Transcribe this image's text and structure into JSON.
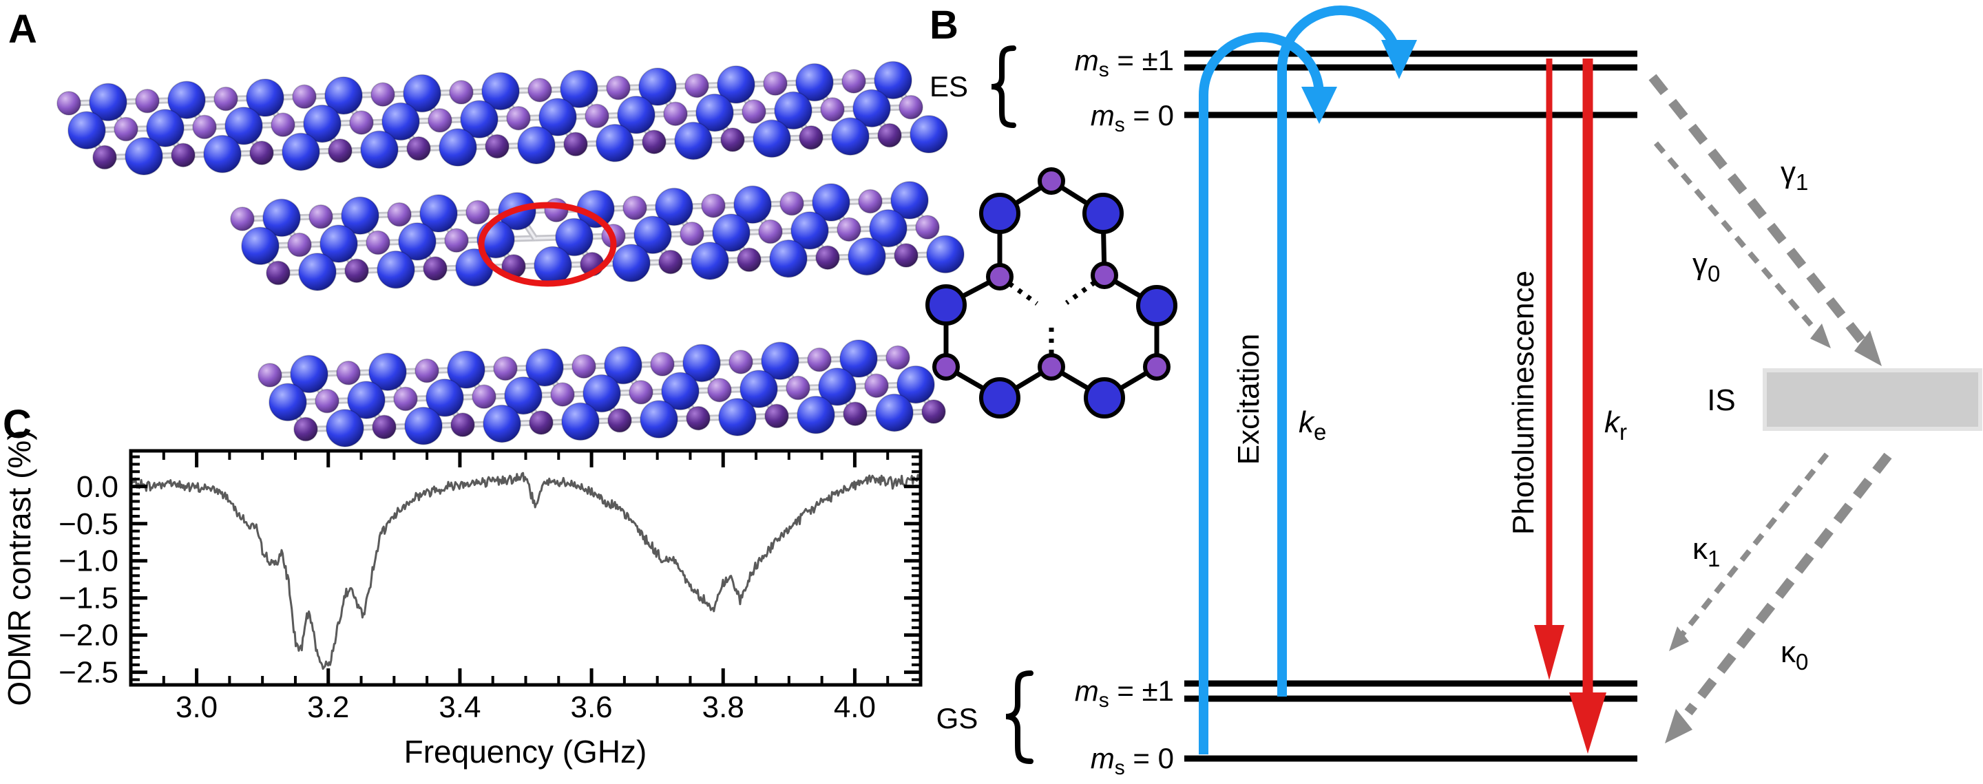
{
  "figure": {
    "panel_a_label": "A",
    "panel_b_label": "B",
    "panel_c_label": "C"
  },
  "panelA": {
    "description": "layered hexagonal crystal lattice with highlighted vacancy defect",
    "colors": {
      "atom_blue": "#2f3fe8",
      "atom_purple_back": "#8e5cc9",
      "atom_purple_front": "#5c2d91",
      "bond": "#c4c4ca",
      "highlight_ellipse": "#e81616"
    }
  },
  "panelB": {
    "es_label": "ES",
    "gs_label": "GS",
    "is_label": "IS",
    "ms_plus_minus": {
      "base": "m",
      "sub": "s",
      "rest": " = ±1"
    },
    "ms_zero": {
      "base": "m",
      "sub": "s",
      "rest": " = 0"
    },
    "excitation_label": "Excitation",
    "photoluminescence_label": "Photoluminescence",
    "k_e": {
      "base": "k",
      "sub": "e"
    },
    "k_r": {
      "base": "k",
      "sub": "r"
    },
    "gamma_1": {
      "base": "γ",
      "sub": "1"
    },
    "gamma_0": {
      "base": "γ",
      "sub": "0"
    },
    "kappa_1": {
      "base": "κ",
      "sub": "1"
    },
    "kappa_0": {
      "base": "κ",
      "sub": "0"
    },
    "colors": {
      "excitation": "#1c9ef2",
      "photoluminescence": "#e11d1d",
      "nonradiative_gray": "#8c8c8c",
      "is_box_fill": "#cdcdcd",
      "level_line": "#000000",
      "molecule_blue": "#3434d8",
      "molecule_purple": "#8b4fc7"
    }
  },
  "chart_data": {
    "type": "line",
    "title": "",
    "xlabel": "Frequency (GHz)",
    "ylabel": "ODMR contrast (%)",
    "xlim": [
      2.9,
      4.1
    ],
    "ylim": [
      -2.67,
      0.48
    ],
    "grid": false,
    "legend": "none",
    "x_ticks": [
      3.0,
      3.2,
      3.4,
      3.6,
      3.8,
      4.0
    ],
    "x_tick_labels": [
      "3.0",
      "3.2",
      "3.4",
      "3.6",
      "3.8",
      "4.0"
    ],
    "x_minor_step": 0.05,
    "y_ticks": [
      0.0,
      -0.5,
      -1.0,
      -1.5,
      -2.0,
      -2.5
    ],
    "y_tick_labels": [
      "0.0",
      "−0.5",
      "−1.0",
      "−1.5",
      "−2.0",
      "−2.5"
    ],
    "y_minor_step": 0.1,
    "line_color": "#5a5a5a",
    "noise_amplitude_percent": 0.085,
    "dip_centers_GHz": [
      3.19,
      3.79
    ],
    "dip_depths_percent": [
      -2.45,
      -1.7
    ],
    "series": [
      {
        "name": "ODMR spectrum",
        "anchor_points": [
          [
            2.902,
            0.05
          ],
          [
            2.93,
            0.0
          ],
          [
            2.96,
            0.06
          ],
          [
            2.99,
            -0.02
          ],
          [
            3.02,
            -0.02
          ],
          [
            3.045,
            -0.12
          ],
          [
            3.06,
            -0.3
          ],
          [
            3.075,
            -0.5
          ],
          [
            3.09,
            -0.55
          ],
          [
            3.1,
            -0.88
          ],
          [
            3.115,
            -1.05
          ],
          [
            3.13,
            -0.92
          ],
          [
            3.14,
            -1.3
          ],
          [
            3.15,
            -2.1
          ],
          [
            3.16,
            -2.2
          ],
          [
            3.168,
            -1.7
          ],
          [
            3.175,
            -1.85
          ],
          [
            3.185,
            -2.3
          ],
          [
            3.195,
            -2.45
          ],
          [
            3.205,
            -2.3
          ],
          [
            3.215,
            -1.85
          ],
          [
            3.225,
            -1.45
          ],
          [
            3.235,
            -1.4
          ],
          [
            3.245,
            -1.6
          ],
          [
            3.253,
            -1.75
          ],
          [
            3.262,
            -1.4
          ],
          [
            3.272,
            -0.9
          ],
          [
            3.282,
            -0.6
          ],
          [
            3.295,
            -0.45
          ],
          [
            3.31,
            -0.3
          ],
          [
            3.33,
            -0.15
          ],
          [
            3.35,
            -0.08
          ],
          [
            3.38,
            0.0
          ],
          [
            3.41,
            0.05
          ],
          [
            3.44,
            0.05
          ],
          [
            3.47,
            0.1
          ],
          [
            3.5,
            0.12
          ],
          [
            3.515,
            -0.28
          ],
          [
            3.525,
            0.05
          ],
          [
            3.55,
            0.05
          ],
          [
            3.58,
            0.0
          ],
          [
            3.61,
            -0.12
          ],
          [
            3.64,
            -0.3
          ],
          [
            3.665,
            -0.5
          ],
          [
            3.69,
            -0.8
          ],
          [
            3.71,
            -1.02
          ],
          [
            3.725,
            -0.95
          ],
          [
            3.74,
            -1.2
          ],
          [
            3.755,
            -1.4
          ],
          [
            3.77,
            -1.5
          ],
          [
            3.785,
            -1.68
          ],
          [
            3.8,
            -1.3
          ],
          [
            3.812,
            -1.22
          ],
          [
            3.825,
            -1.55
          ],
          [
            3.84,
            -1.25
          ],
          [
            3.855,
            -1.0
          ],
          [
            3.875,
            -0.8
          ],
          [
            3.895,
            -0.6
          ],
          [
            3.915,
            -0.45
          ],
          [
            3.935,
            -0.3
          ],
          [
            3.955,
            -0.18
          ],
          [
            3.98,
            -0.05
          ],
          [
            4.005,
            0.05
          ],
          [
            4.03,
            0.1
          ],
          [
            4.06,
            0.05
          ],
          [
            4.099,
            0.1
          ]
        ]
      }
    ]
  }
}
